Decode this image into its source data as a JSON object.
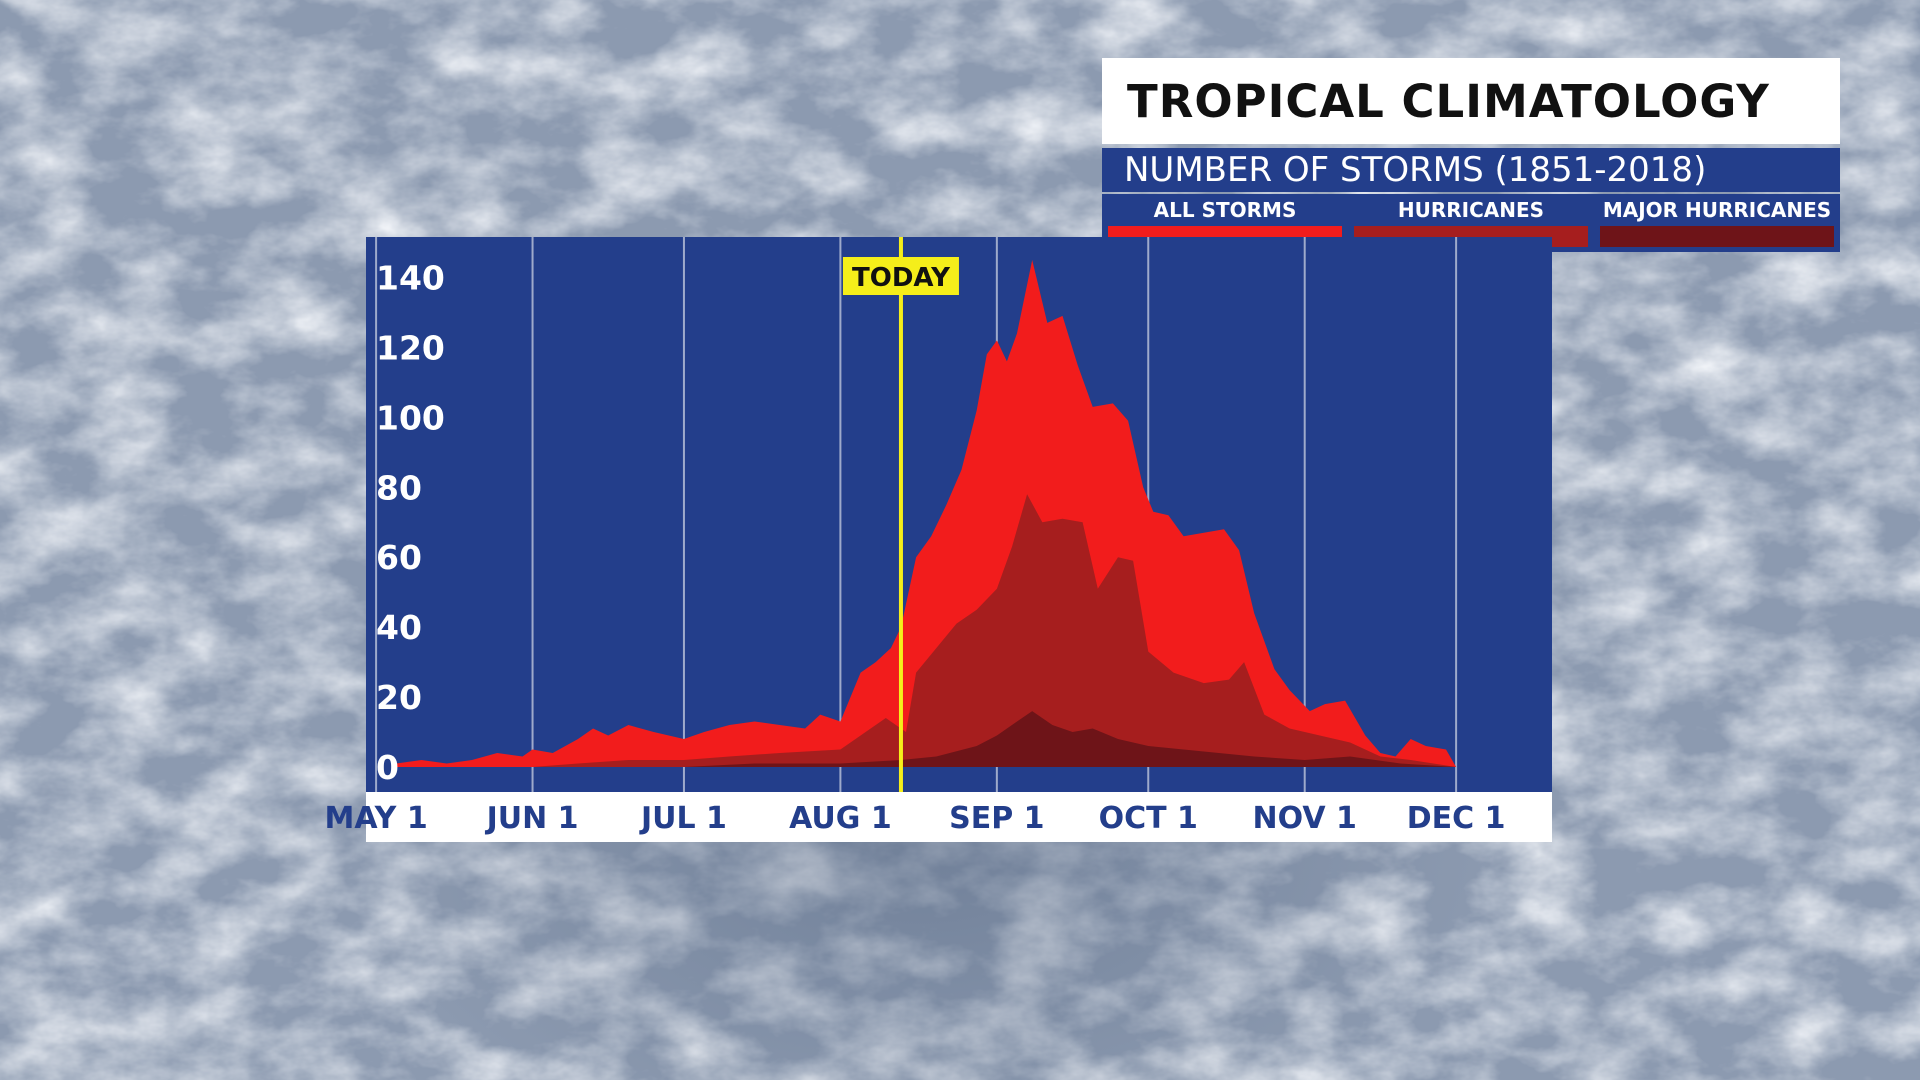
{
  "header": {
    "title": "TROPICAL CLIMATOLOGY",
    "subtitle": "NUMBER OF STORMS (1851-2018)"
  },
  "legend": [
    {
      "label": "ALL STORMS",
      "color": "#f21c1c"
    },
    {
      "label": "HURRICANES",
      "color": "#a61e1e"
    },
    {
      "label": "MAJOR HURRICANES",
      "color": "#6e1418"
    }
  ],
  "colors": {
    "plot_background": "#233e8b",
    "today_line": "#f5ee1a",
    "gridline": "#c8cfe0"
  },
  "chart_data": {
    "type": "area",
    "title": "TROPICAL CLIMATOLOGY",
    "subtitle": "NUMBER OF STORMS (1851-2018)",
    "ylim": [
      0,
      145
    ],
    "yticks": [
      "0",
      "20",
      "40",
      "60",
      "80",
      "100",
      "120",
      "140"
    ],
    "xlim": [
      "2019-04-29",
      "2019-12-20"
    ],
    "xticks": [
      {
        "date": "2019-05-01",
        "label": "MAY 1"
      },
      {
        "date": "2019-06-01",
        "label": "JUN 1"
      },
      {
        "date": "2019-07-01",
        "label": "JUL 1"
      },
      {
        "date": "2019-08-01",
        "label": "AUG 1"
      },
      {
        "date": "2019-09-01",
        "label": "SEP 1"
      },
      {
        "date": "2019-10-01",
        "label": "OCT 1"
      },
      {
        "date": "2019-11-01",
        "label": "NOV 1"
      },
      {
        "date": "2019-12-01",
        "label": "DEC 1"
      }
    ],
    "grid": true,
    "legend_position": "top-right",
    "annotation": {
      "label": "TODAY",
      "date": "2019-08-13"
    },
    "series": [
      {
        "name": "ALL STORMS",
        "points": [
          [
            "2019-05-05",
            1
          ],
          [
            "2019-05-10",
            2
          ],
          [
            "2019-05-15",
            1
          ],
          [
            "2019-05-20",
            2
          ],
          [
            "2019-05-25",
            4
          ],
          [
            "2019-05-30",
            3
          ],
          [
            "2019-06-01",
            5
          ],
          [
            "2019-06-05",
            4
          ],
          [
            "2019-06-10",
            8
          ],
          [
            "2019-06-13",
            11
          ],
          [
            "2019-06-16",
            9
          ],
          [
            "2019-06-20",
            12
          ],
          [
            "2019-06-25",
            10
          ],
          [
            "2019-07-01",
            8
          ],
          [
            "2019-07-05",
            10
          ],
          [
            "2019-07-10",
            12
          ],
          [
            "2019-07-15",
            13
          ],
          [
            "2019-07-20",
            12
          ],
          [
            "2019-07-25",
            11
          ],
          [
            "2019-07-28",
            15
          ],
          [
            "2019-08-01",
            13
          ],
          [
            "2019-08-05",
            27
          ],
          [
            "2019-08-08",
            30
          ],
          [
            "2019-08-11",
            34
          ],
          [
            "2019-08-13",
            40
          ],
          [
            "2019-08-16",
            60
          ],
          [
            "2019-08-19",
            66
          ],
          [
            "2019-08-22",
            75
          ],
          [
            "2019-08-25",
            85
          ],
          [
            "2019-08-28",
            102
          ],
          [
            "2019-08-30",
            118
          ],
          [
            "2019-09-01",
            122
          ],
          [
            "2019-09-03",
            116
          ],
          [
            "2019-09-05",
            124
          ],
          [
            "2019-09-08",
            145
          ],
          [
            "2019-09-11",
            127
          ],
          [
            "2019-09-14",
            129
          ],
          [
            "2019-09-17",
            115
          ],
          [
            "2019-09-20",
            103
          ],
          [
            "2019-09-24",
            104
          ],
          [
            "2019-09-27",
            99
          ],
          [
            "2019-09-30",
            80
          ],
          [
            "2019-10-02",
            73
          ],
          [
            "2019-10-05",
            72
          ],
          [
            "2019-10-08",
            66
          ],
          [
            "2019-10-12",
            67
          ],
          [
            "2019-10-16",
            68
          ],
          [
            "2019-10-19",
            62
          ],
          [
            "2019-10-22",
            44
          ],
          [
            "2019-10-26",
            28
          ],
          [
            "2019-10-29",
            22
          ],
          [
            "2019-11-02",
            16
          ],
          [
            "2019-11-05",
            18
          ],
          [
            "2019-11-09",
            19
          ],
          [
            "2019-11-13",
            9
          ],
          [
            "2019-11-16",
            4
          ],
          [
            "2019-11-19",
            3
          ],
          [
            "2019-11-22",
            8
          ],
          [
            "2019-11-25",
            6
          ],
          [
            "2019-11-29",
            5
          ],
          [
            "2019-12-01",
            0
          ]
        ]
      },
      {
        "name": "HURRICANES",
        "points": [
          [
            "2019-06-01",
            0
          ],
          [
            "2019-06-10",
            1
          ],
          [
            "2019-06-20",
            2
          ],
          [
            "2019-07-01",
            2
          ],
          [
            "2019-07-10",
            3
          ],
          [
            "2019-07-20",
            4
          ],
          [
            "2019-08-01",
            5
          ],
          [
            "2019-08-05",
            9
          ],
          [
            "2019-08-10",
            14
          ],
          [
            "2019-08-14",
            10
          ],
          [
            "2019-08-16",
            27
          ],
          [
            "2019-08-20",
            34
          ],
          [
            "2019-08-24",
            41
          ],
          [
            "2019-08-28",
            45
          ],
          [
            "2019-09-01",
            51
          ],
          [
            "2019-09-04",
            63
          ],
          [
            "2019-09-07",
            78
          ],
          [
            "2019-09-10",
            70
          ],
          [
            "2019-09-14",
            71
          ],
          [
            "2019-09-18",
            70
          ],
          [
            "2019-09-21",
            51
          ],
          [
            "2019-09-25",
            60
          ],
          [
            "2019-09-28",
            59
          ],
          [
            "2019-10-01",
            33
          ],
          [
            "2019-10-06",
            27
          ],
          [
            "2019-10-12",
            24
          ],
          [
            "2019-10-17",
            25
          ],
          [
            "2019-10-20",
            30
          ],
          [
            "2019-10-24",
            15
          ],
          [
            "2019-10-29",
            11
          ],
          [
            "2019-11-04",
            9
          ],
          [
            "2019-11-10",
            7
          ],
          [
            "2019-11-16",
            3
          ],
          [
            "2019-11-22",
            2
          ],
          [
            "2019-12-01",
            0
          ]
        ]
      },
      {
        "name": "MAJOR HURRICANES",
        "points": [
          [
            "2019-07-01",
            0
          ],
          [
            "2019-07-15",
            1
          ],
          [
            "2019-08-01",
            1
          ],
          [
            "2019-08-13",
            2
          ],
          [
            "2019-08-20",
            3
          ],
          [
            "2019-08-28",
            6
          ],
          [
            "2019-09-01",
            9
          ],
          [
            "2019-09-05",
            13
          ],
          [
            "2019-09-08",
            16
          ],
          [
            "2019-09-12",
            12
          ],
          [
            "2019-09-16",
            10
          ],
          [
            "2019-09-20",
            11
          ],
          [
            "2019-09-25",
            8
          ],
          [
            "2019-10-01",
            6
          ],
          [
            "2019-10-08",
            5
          ],
          [
            "2019-10-15",
            4
          ],
          [
            "2019-10-22",
            3
          ],
          [
            "2019-11-01",
            2
          ],
          [
            "2019-11-10",
            3
          ],
          [
            "2019-11-20",
            1
          ],
          [
            "2019-12-01",
            0
          ]
        ]
      }
    ]
  }
}
